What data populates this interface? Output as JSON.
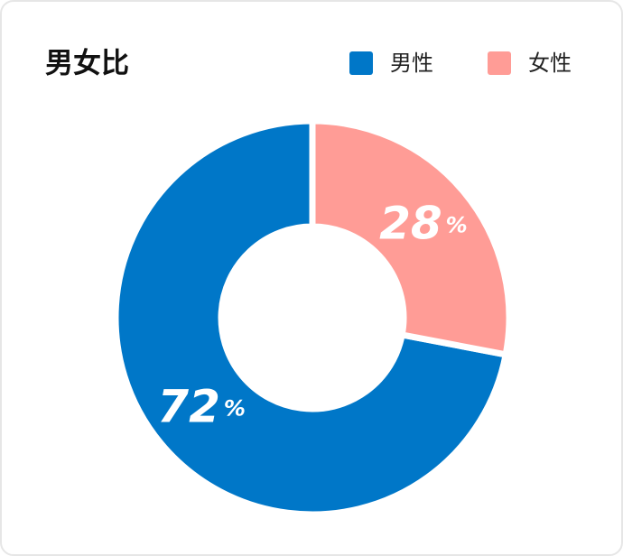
{
  "chart_data": {
    "type": "donut",
    "title": "男女比",
    "categories": [
      "男性",
      "女性"
    ],
    "values": [
      72,
      28
    ],
    "value_labels": [
      "72%",
      "28%"
    ],
    "colors": [
      "#0077c8",
      "#ff9c96"
    ]
  }
}
